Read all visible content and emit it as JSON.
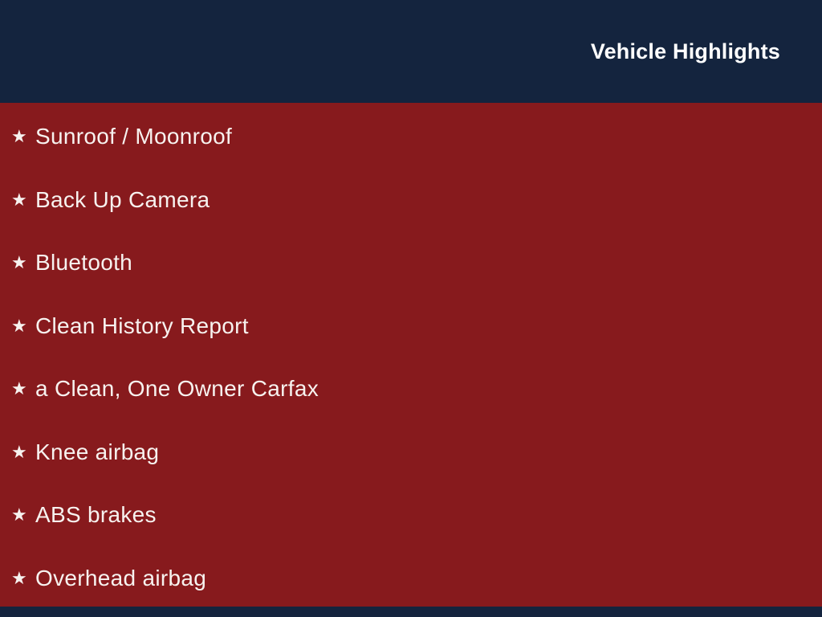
{
  "colors": {
    "header_bg": "#14243e",
    "body_bg": "#871a1d",
    "text": "#f7f2ef"
  },
  "header": {
    "title": "Vehicle Highlights"
  },
  "list": {
    "bullet": "★",
    "items": [
      {
        "label": "Sunroof / Moonroof"
      },
      {
        "label": "Back Up Camera"
      },
      {
        "label": "Bluetooth"
      },
      {
        "label": "Clean History Report"
      },
      {
        "label": "a Clean, One Owner Carfax"
      },
      {
        "label": "Knee airbag"
      },
      {
        "label": "ABS brakes"
      },
      {
        "label": "Overhead airbag"
      }
    ]
  }
}
